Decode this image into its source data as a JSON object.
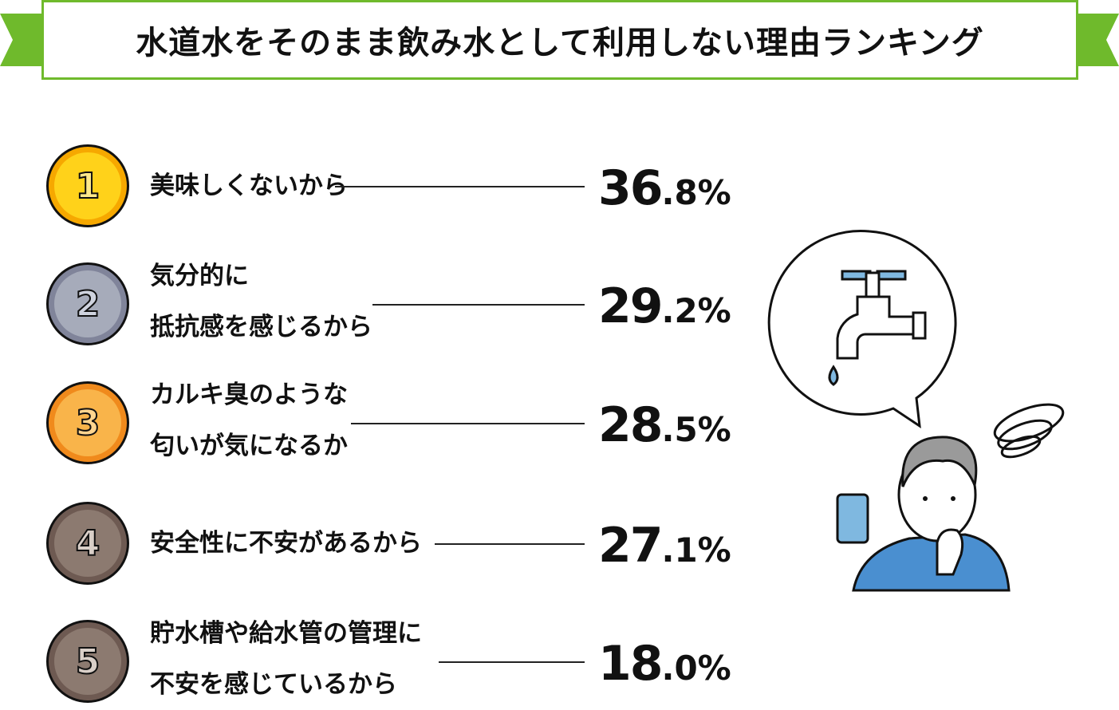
{
  "title": "水道水をそのまま飲み水として利用しない理由ランキング",
  "colors": {
    "accent": "#6fba2c"
  },
  "ranking": [
    {
      "rank": "1",
      "lines": [
        "美味しくないから"
      ],
      "pct_int": "36",
      "pct_dec": ".8%",
      "medal": "gold"
    },
    {
      "rank": "2",
      "lines": [
        "気分的に",
        "抵抗感を感じるから"
      ],
      "pct_int": "29",
      "pct_dec": ".2%",
      "medal": "silver"
    },
    {
      "rank": "3",
      "lines": [
        "カルキ臭のような",
        "匂いが気になるか"
      ],
      "pct_int": "28",
      "pct_dec": ".5%",
      "medal": "bronze"
    },
    {
      "rank": "4",
      "lines": [
        "安全性に不安があるから"
      ],
      "pct_int": "27",
      "pct_dec": ".1%",
      "medal": "brown"
    },
    {
      "rank": "5",
      "lines": [
        "貯水槽や給水管の管理に",
        "不安を感じているから"
      ],
      "pct_int": "18",
      "pct_dec": ".0%",
      "medal": "brown"
    }
  ]
}
